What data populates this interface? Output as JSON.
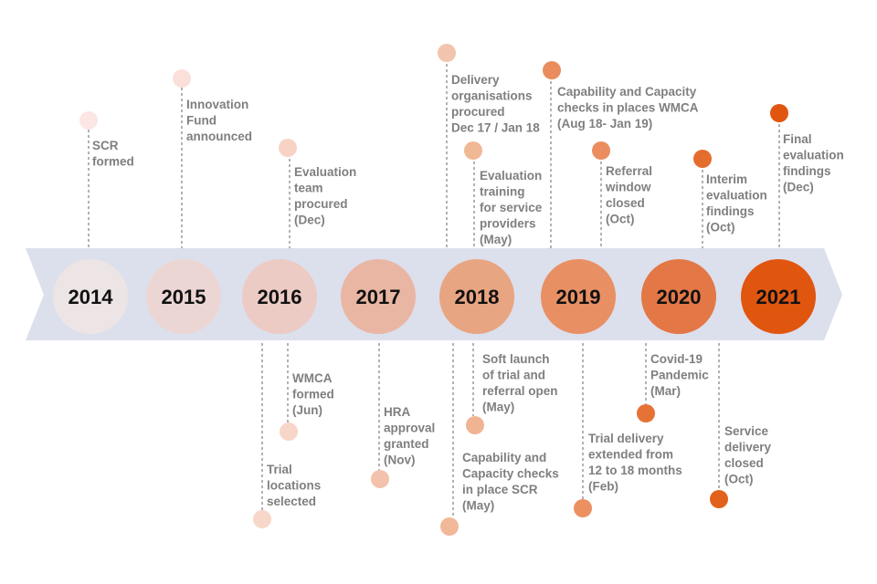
{
  "band_color": "#dcdfec",
  "years": [
    {
      "label": "2014",
      "color": "#ece4e5"
    },
    {
      "label": "2015",
      "color": "#ecd6d4"
    },
    {
      "label": "2016",
      "color": "#eccbc4"
    },
    {
      "label": "2017",
      "color": "#e9b6a3"
    },
    {
      "label": "2018",
      "color": "#e8a582"
    },
    {
      "label": "2019",
      "color": "#e89064"
    },
    {
      "label": "2020",
      "color": "#e37746"
    },
    {
      "label": "2021",
      "color": "#e0560f"
    }
  ],
  "events": [
    {
      "id": "scr-formed",
      "lines": [
        "SCR",
        "formed"
      ],
      "color": "#fbe6e4"
    },
    {
      "id": "innovation-fund",
      "lines": [
        "Innovation",
        "Fund",
        "announced"
      ],
      "color": "#fbe0da"
    },
    {
      "id": "evaluation-team",
      "lines": [
        "Evaluation",
        "team",
        "procured",
        "(Dec)"
      ],
      "color": "#f7d3c6"
    },
    {
      "id": "trial-locations",
      "lines": [
        "Trial",
        "locations",
        "selected"
      ],
      "color": "#f7d7c9"
    },
    {
      "id": "wmca-formed",
      "lines": [
        "WMCA",
        "formed",
        "(Jun)"
      ],
      "color": "#f7d6c8"
    },
    {
      "id": "hra-approval",
      "lines": [
        "HRA",
        "approval",
        "granted",
        "(Nov)"
      ],
      "color": "#f4c2ac"
    },
    {
      "id": "delivery-orgs",
      "lines": [
        "Delivery",
        "organisations",
        "procured",
        "Dec 17 / Jan 18"
      ],
      "color": "#f3c4ad"
    },
    {
      "id": "eval-training",
      "lines": [
        "Evaluation",
        "training",
        "for service",
        "providers",
        "(May)"
      ],
      "color": "#f1b896"
    },
    {
      "id": "soft-launch",
      "lines": [
        "Soft launch",
        "of trial and",
        "referral open",
        "(May)"
      ],
      "color": "#f1b493"
    },
    {
      "id": "capacity-scr",
      "lines": [
        "Capability and",
        "Capacity checks",
        "in place SCR",
        "(May)"
      ],
      "color": "#f1b89a"
    },
    {
      "id": "capacity-wmca",
      "lines": [
        "Capability and Capacity",
        "checks in places WMCA",
        "(Aug 18- Jan 19)"
      ],
      "color": "#ea8c5e"
    },
    {
      "id": "referral-window",
      "lines": [
        "Referral",
        "window",
        "closed",
        "(Oct)"
      ],
      "color": "#eb8d5e"
    },
    {
      "id": "trial-extended",
      "lines": [
        "Trial delivery",
        "extended from",
        "12 to 18 months",
        "(Feb)"
      ],
      "color": "#ec9062"
    },
    {
      "id": "interim-findings",
      "lines": [
        "Interim",
        "evaluation",
        "findings",
        "(Oct)"
      ],
      "color": "#e46d2e"
    },
    {
      "id": "covid",
      "lines": [
        "Covid-19",
        "Pandemic",
        "(Mar)"
      ],
      "color": "#e67236"
    },
    {
      "id": "service-closed",
      "lines": [
        "Service",
        "delivery",
        "closed",
        "(Oct)"
      ],
      "color": "#e2621c"
    },
    {
      "id": "final-findings",
      "lines": [
        "Final",
        "evaluation",
        "findings",
        "(Dec)"
      ],
      "color": "#e0560f"
    }
  ]
}
